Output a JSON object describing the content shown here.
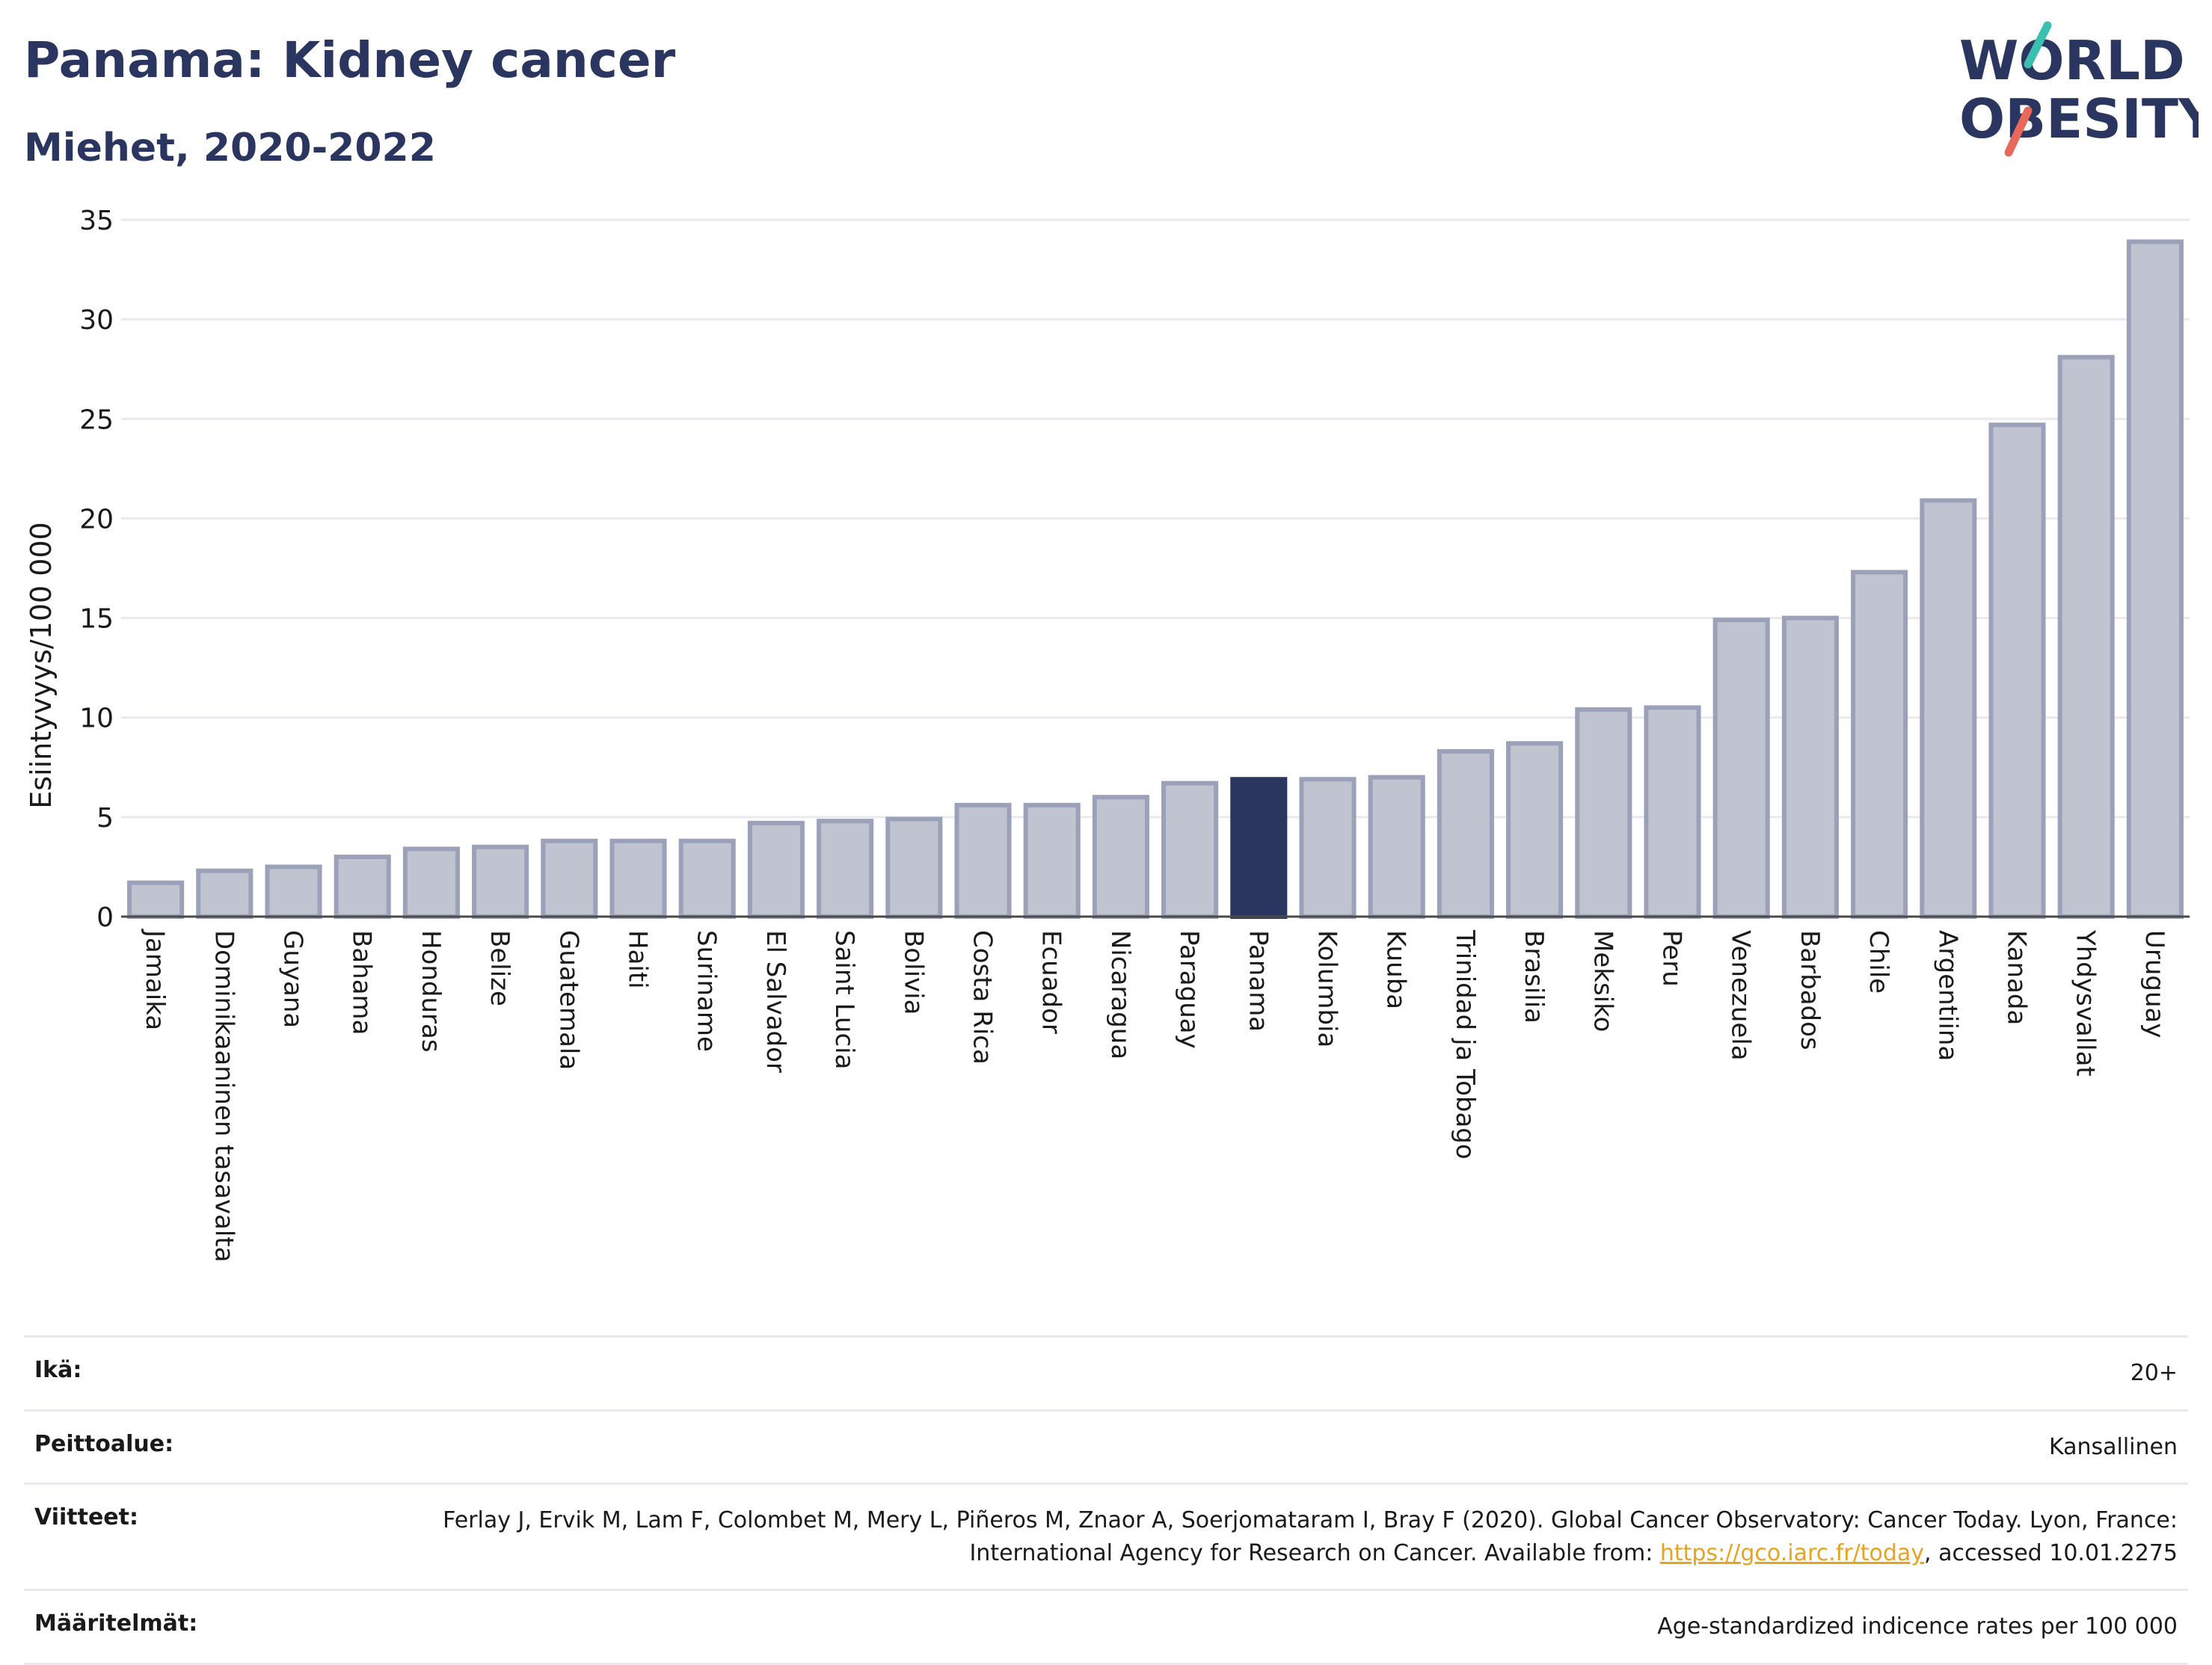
{
  "header": {
    "title": "Panama: Kidney cancer",
    "subtitle": "Miehet, 2020-2022"
  },
  "logo": {
    "line1": "WORLD",
    "line2": "OBESITY",
    "accent_teal": "#3bbfb0",
    "accent_red": "#e8695a"
  },
  "colors": {
    "bar_default": "#c0c4d1",
    "bar_border": "#9ba1b8",
    "bar_highlight": "#2b3660",
    "grid": "#e8eaf0",
    "text_dark": "#2b3660"
  },
  "chart_data": {
    "type": "bar",
    "ylabel": "Esiintyvyys/100 000",
    "ylim": [
      0,
      35
    ],
    "yticks": [
      0,
      5,
      10,
      15,
      20,
      25,
      30,
      35
    ],
    "grid": true,
    "highlight": "Panama",
    "categories": [
      "Jamaika",
      "Dominikaaninen tasavalta",
      "Guyana",
      "Bahama",
      "Honduras",
      "Belize",
      "Guatemala",
      "Haiti",
      "Suriname",
      "El Salvador",
      "Saint Lucia",
      "Bolivia",
      "Costa Rica",
      "Ecuador",
      "Nicaragua",
      "Paraguay",
      "Panama",
      "Kolumbia",
      "Kuuba",
      "Trinidad ja Tobago",
      "Brasilia",
      "Meksiko",
      "Peru",
      "Venezuela",
      "Barbados",
      "Chile",
      "Argentiina",
      "Kanada",
      "Yhdysvallat",
      "Uruguay"
    ],
    "values": [
      1.7,
      2.3,
      2.5,
      3.0,
      3.4,
      3.5,
      3.8,
      3.8,
      3.8,
      4.7,
      4.8,
      4.9,
      5.6,
      5.6,
      6.0,
      6.7,
      6.9,
      6.9,
      7.0,
      8.3,
      8.7,
      10.4,
      10.5,
      14.9,
      15.0,
      17.3,
      20.9,
      24.7,
      28.1,
      33.9
    ]
  },
  "meta": {
    "age_label": "Ikä:",
    "age_value": "20+",
    "coverage_label": "Peittoalue:",
    "coverage_value": "Kansallinen",
    "refs_label": "Viitteet:",
    "refs_text_1": "Ferlay J, Ervik M, Lam F, Colombet M, Mery L, Piñeros M, Znaor A, Soerjomataram I, Bray F (2020). Global Cancer Observatory: Cancer Today. Lyon, France: International Agency for Research on Cancer. Available from: ",
    "refs_link": "https://gco.iarc.fr/today",
    "refs_text_2": ", accessed 10.01.2275",
    "defs_label": "Määritelmät:",
    "defs_value": "Age-standardized indicence rates per 100 000"
  }
}
